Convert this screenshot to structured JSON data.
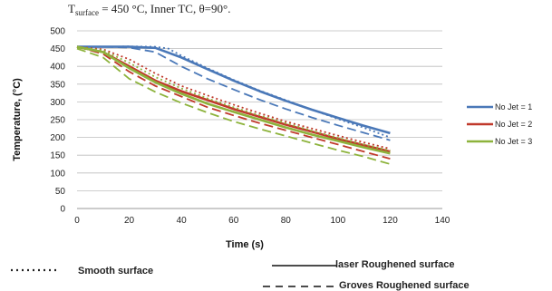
{
  "caption": "T",
  "caption_subscript": "surface",
  "caption_rest": " = 450 °C, Inner TC, θ=90°.",
  "style_legend": {
    "smooth": "Smooth surface",
    "laser": "laser Roughened surface",
    "groves": "Groves Roughened surface"
  },
  "chart_data": {
    "type": "line",
    "xlabel": "Time (s)",
    "ylabel": "Temperature, (°C)",
    "xlim": [
      0,
      140
    ],
    "ylim": [
      0,
      500
    ],
    "x_ticks": [
      "0",
      "20",
      "40",
      "60",
      "80",
      "100",
      "120",
      "140"
    ],
    "y_ticks": [
      "0",
      "50",
      "100",
      "150",
      "200",
      "250",
      "300",
      "350",
      "400",
      "450",
      "500"
    ],
    "grid": "horizontal",
    "legend_position": "right",
    "series": [
      {
        "name": "No Jet = 1",
        "color": "#4a78b8",
        "style": "solid",
        "x": [
          0,
          10,
          20,
          30,
          40,
          50,
          60,
          70,
          80,
          90,
          100,
          110,
          120
        ],
        "y": [
          455,
          455,
          455,
          452,
          425,
          392,
          360,
          330,
          303,
          278,
          255,
          233,
          212
        ]
      },
      {
        "color": "#4a78b8",
        "style": "dashed",
        "x": [
          0,
          10,
          20,
          30,
          40,
          50,
          60,
          70,
          80,
          90,
          100,
          110,
          120
        ],
        "y": [
          455,
          455,
          453,
          440,
          400,
          365,
          335,
          306,
          280,
          256,
          234,
          213,
          192
        ]
      },
      {
        "color": "#4a78b8",
        "style": "dotted",
        "x": [
          0,
          10,
          20,
          30,
          35,
          40,
          50,
          60,
          70,
          80,
          90,
          100,
          110,
          120
        ],
        "y": [
          455,
          455,
          456,
          455,
          450,
          430,
          395,
          362,
          332,
          305,
          278,
          252,
          227,
          200
        ]
      },
      {
        "name": "No Jet = 2",
        "color": "#c0392b",
        "style": "solid",
        "x": [
          0,
          10,
          20,
          30,
          40,
          50,
          60,
          70,
          80,
          90,
          100,
          110,
          120
        ],
        "y": [
          455,
          440,
          400,
          360,
          330,
          305,
          280,
          258,
          236,
          216,
          196,
          178,
          160
        ]
      },
      {
        "color": "#c0392b",
        "style": "dashed",
        "x": [
          0,
          10,
          20,
          30,
          40,
          50,
          60,
          70,
          80,
          90,
          100,
          110,
          120
        ],
        "y": [
          455,
          435,
          385,
          345,
          315,
          285,
          262,
          240,
          220,
          200,
          180,
          160,
          140
        ]
      },
      {
        "color": "#c0392b",
        "style": "dotted",
        "x": [
          0,
          10,
          20,
          30,
          40,
          50,
          60,
          70,
          80,
          90,
          100,
          110,
          120
        ],
        "y": [
          455,
          448,
          420,
          380,
          345,
          318,
          292,
          268,
          245,
          225,
          205,
          186,
          168
        ]
      },
      {
        "name": "No Jet = 3",
        "color": "#8db33c",
        "style": "solid",
        "x": [
          0,
          10,
          20,
          30,
          40,
          50,
          60,
          70,
          80,
          90,
          100,
          110,
          120
        ],
        "y": [
          455,
          440,
          395,
          355,
          323,
          295,
          272,
          250,
          228,
          208,
          190,
          172,
          155
        ]
      },
      {
        "color": "#8db33c",
        "style": "dashed",
        "x": [
          0,
          10,
          20,
          30,
          40,
          50,
          60,
          70,
          80,
          90,
          100,
          110,
          120
        ],
        "y": [
          450,
          425,
          365,
          328,
          297,
          270,
          245,
          224,
          204,
          184,
          164,
          146,
          125
        ]
      },
      {
        "color": "#8db33c",
        "style": "dotted",
        "x": [
          0,
          10,
          20,
          30,
          40,
          50,
          60,
          70,
          80,
          90,
          100,
          110,
          120
        ],
        "y": [
          455,
          445,
          410,
          370,
          338,
          310,
          285,
          262,
          240,
          219,
          199,
          180,
          163
        ]
      }
    ]
  }
}
